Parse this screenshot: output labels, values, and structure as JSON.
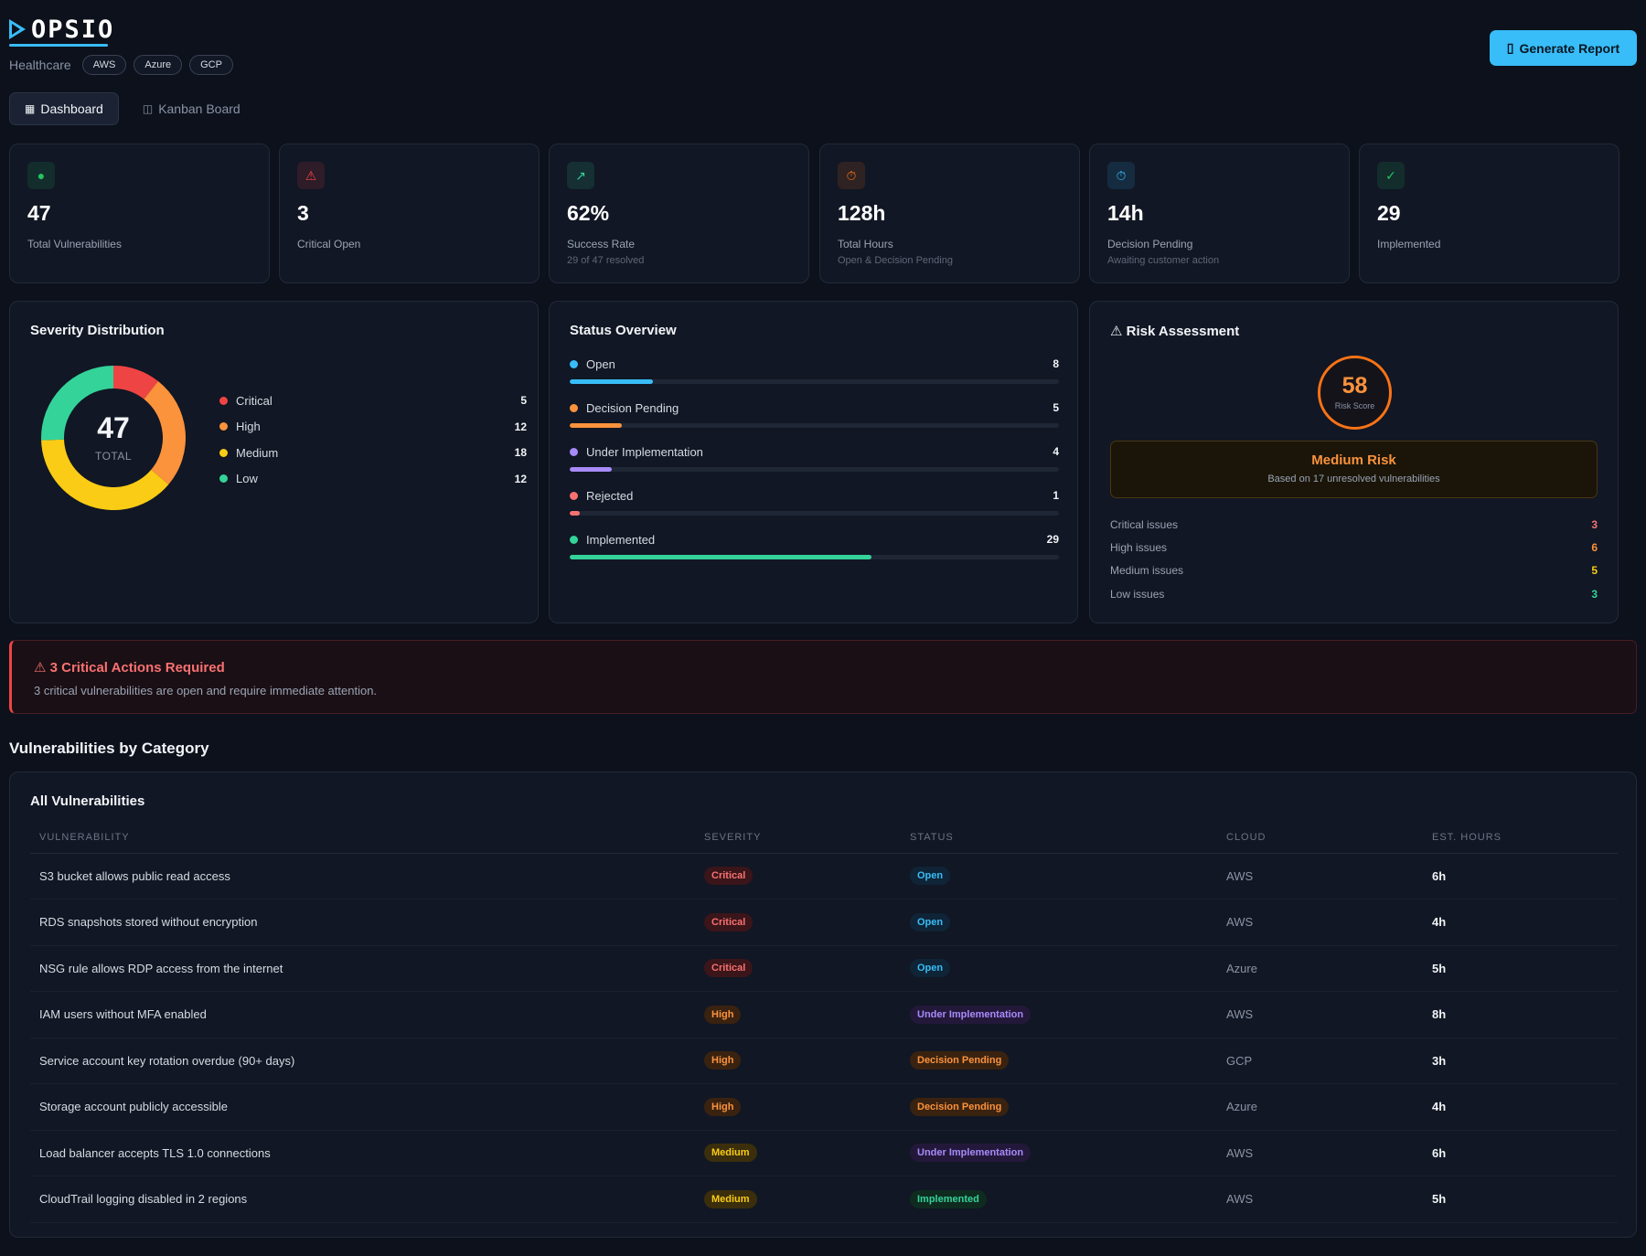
{
  "header": {
    "logo_text": "OPSIO",
    "industry": "Healthcare",
    "clouds": [
      "AWS",
      "Azure",
      "GCP"
    ],
    "generate_button": {
      "icon": "document-icon",
      "label": "Generate Report"
    }
  },
  "tabs": [
    {
      "label": "Dashboard",
      "icon": "grid-icon",
      "active": true
    },
    {
      "label": "Kanban Board",
      "icon": "columns-icon",
      "active": false
    }
  ],
  "stats": [
    {
      "icon": "dot-icon",
      "icon_glyph": "●",
      "color": "#22c55e",
      "value": "47",
      "label": "Total Vulnerabilities",
      "sub": ""
    },
    {
      "icon": "warning-icon",
      "icon_glyph": "⚠",
      "color": "#ef4444",
      "value": "3",
      "label": "Critical Open",
      "sub": ""
    },
    {
      "icon": "trend-up-icon",
      "icon_glyph": "↗",
      "color": "#34d399",
      "value": "62%",
      "label": "Success Rate",
      "sub": "29 of 47 resolved"
    },
    {
      "icon": "clock-icon",
      "icon_glyph": "⏱",
      "color": "#f97316",
      "value": "128h",
      "label": "Total Hours",
      "sub": "Open & Decision Pending"
    },
    {
      "icon": "timer-icon",
      "icon_glyph": "⏱",
      "color": "#38bdf8",
      "value": "14h",
      "label": "Decision Pending",
      "sub": "Awaiting customer action"
    },
    {
      "icon": "check-icon",
      "icon_glyph": "✓",
      "color": "#22c55e",
      "value": "29",
      "label": "Implemented",
      "sub": ""
    }
  ],
  "severity": {
    "title": "Severity Distribution",
    "total": "47",
    "total_label": "TOTAL",
    "items": [
      {
        "name": "Critical",
        "value": 5,
        "color": "#ef4444"
      },
      {
        "name": "High",
        "value": 12,
        "color": "#fb923c"
      },
      {
        "name": "Medium",
        "value": 18,
        "color": "#facc15"
      },
      {
        "name": "Low",
        "value": 12,
        "color": "#34d399"
      }
    ]
  },
  "status": {
    "title": "Status Overview",
    "max": 47,
    "items": [
      {
        "name": "Open",
        "value": 8,
        "color": "#38bdf8"
      },
      {
        "name": "Decision Pending",
        "value": 5,
        "color": "#fb923c"
      },
      {
        "name": "Under Implementation",
        "value": 4,
        "color": "#a78bfa"
      },
      {
        "name": "Rejected",
        "value": 1,
        "color": "#f87171"
      },
      {
        "name": "Implemented",
        "value": 29,
        "color": "#34d399"
      }
    ]
  },
  "risk": {
    "title": "⚠ Risk Assessment",
    "score": "58",
    "score_label": "Risk Score",
    "level": "Medium Risk",
    "basis": "Based on 17 unresolved vulnerabilities",
    "rows": [
      {
        "label": "Critical issues",
        "value": "3",
        "color": "#f87171"
      },
      {
        "label": "High issues",
        "value": "6",
        "color": "#fb923c"
      },
      {
        "label": "Medium issues",
        "value": "5",
        "color": "#facc15"
      },
      {
        "label": "Low issues",
        "value": "3",
        "color": "#34d399"
      }
    ]
  },
  "alert": {
    "title": "⚠ 3 Critical Actions Required",
    "body": "3 critical vulnerabilities are open and require immediate attention."
  },
  "section_title": "Vulnerabilities by Category",
  "table": {
    "title": "All Vulnerabilities",
    "columns": [
      "VULNERABILITY",
      "SEVERITY",
      "STATUS",
      "CLOUD",
      "EST. HOURS"
    ],
    "rows": [
      {
        "name": "S3 bucket allows public read access",
        "severity": "Critical",
        "status": "Open",
        "cloud": "AWS",
        "hours": "6h"
      },
      {
        "name": "RDS snapshots stored without encryption",
        "severity": "Critical",
        "status": "Open",
        "cloud": "AWS",
        "hours": "4h"
      },
      {
        "name": "NSG rule allows RDP access from the internet",
        "severity": "Critical",
        "status": "Open",
        "cloud": "Azure",
        "hours": "5h"
      },
      {
        "name": "IAM users without MFA enabled",
        "severity": "High",
        "status": "Under Implementation",
        "cloud": "AWS",
        "hours": "8h"
      },
      {
        "name": "Service account key rotation overdue (90+ days)",
        "severity": "High",
        "status": "Decision Pending",
        "cloud": "GCP",
        "hours": "3h"
      },
      {
        "name": "Storage account publicly accessible",
        "severity": "High",
        "status": "Decision Pending",
        "cloud": "Azure",
        "hours": "4h"
      },
      {
        "name": "Load balancer accepts TLS 1.0 connections",
        "severity": "Medium",
        "status": "Under Implementation",
        "cloud": "AWS",
        "hours": "6h"
      },
      {
        "name": "CloudTrail logging disabled in 2 regions",
        "severity": "Medium",
        "status": "Implemented",
        "cloud": "AWS",
        "hours": "5h"
      }
    ]
  }
}
